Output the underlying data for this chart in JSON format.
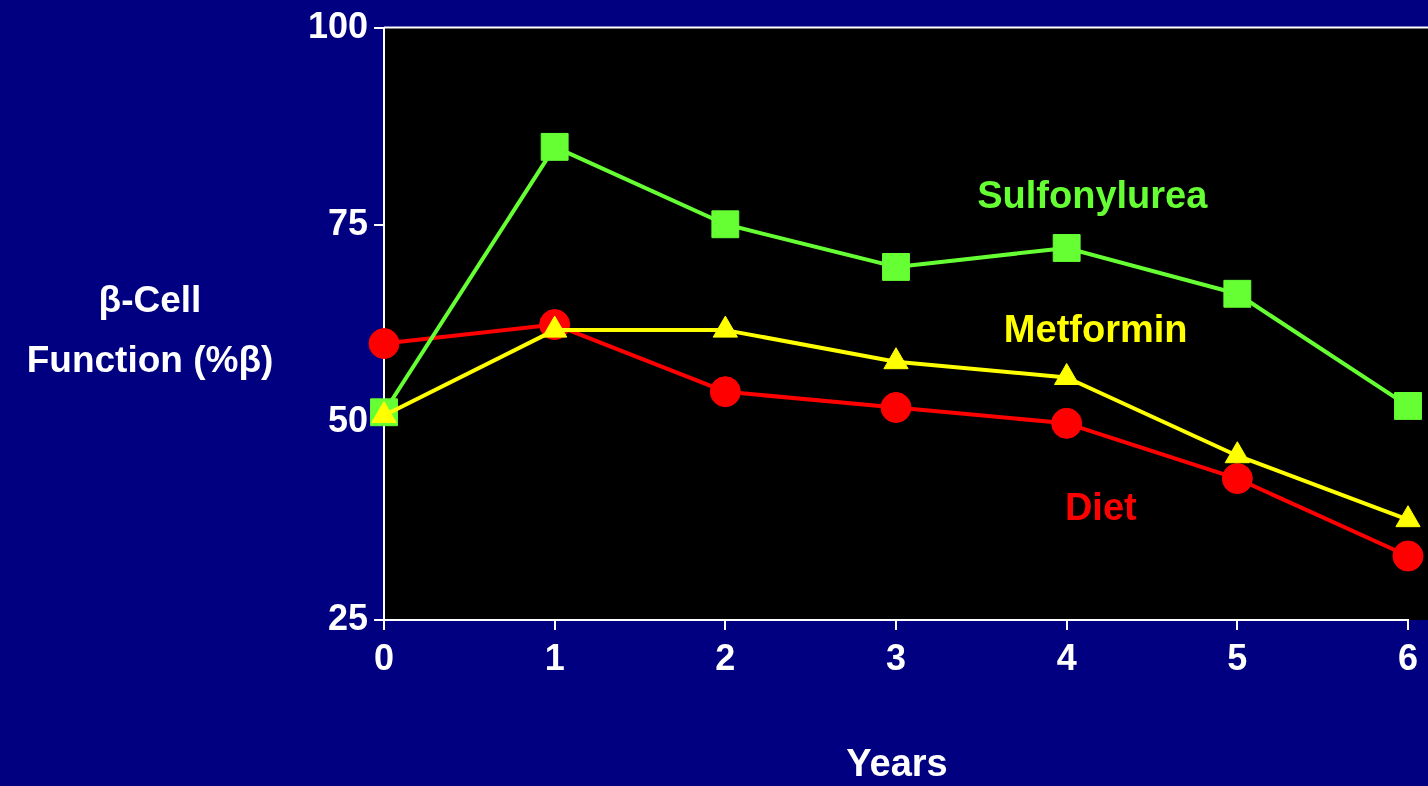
{
  "chart_data": {
    "type": "line",
    "xlabel": "Years",
    "ylabel": "β-Cell\nFunction (%β)",
    "x": [
      0,
      1,
      2,
      3,
      4,
      5,
      6
    ],
    "xlim": [
      0,
      6
    ],
    "xticks": [
      0,
      1,
      2,
      3,
      4,
      5,
      6
    ],
    "ylim": [
      25,
      100
    ],
    "yticks": [
      25,
      50,
      75,
      100
    ],
    "grid": false,
    "legend": false,
    "series": [
      {
        "name": "Sulfonylurea",
        "color": "#66ff33",
        "marker": "square",
        "values": [
          51.3,
          84.9,
          75.1,
          69.7,
          72.1,
          66.3,
          52.1
        ]
      },
      {
        "name": "Metformin",
        "color": "#ffff00",
        "marker": "triangle",
        "values": [
          50.9,
          61.7,
          61.7,
          57.7,
          55.7,
          45.8,
          37.7
        ]
      },
      {
        "name": "Diet",
        "color": "#ff0000",
        "marker": "circle",
        "values": [
          60.0,
          62.4,
          53.9,
          51.9,
          49.9,
          42.9,
          33.1
        ]
      }
    ]
  }
}
